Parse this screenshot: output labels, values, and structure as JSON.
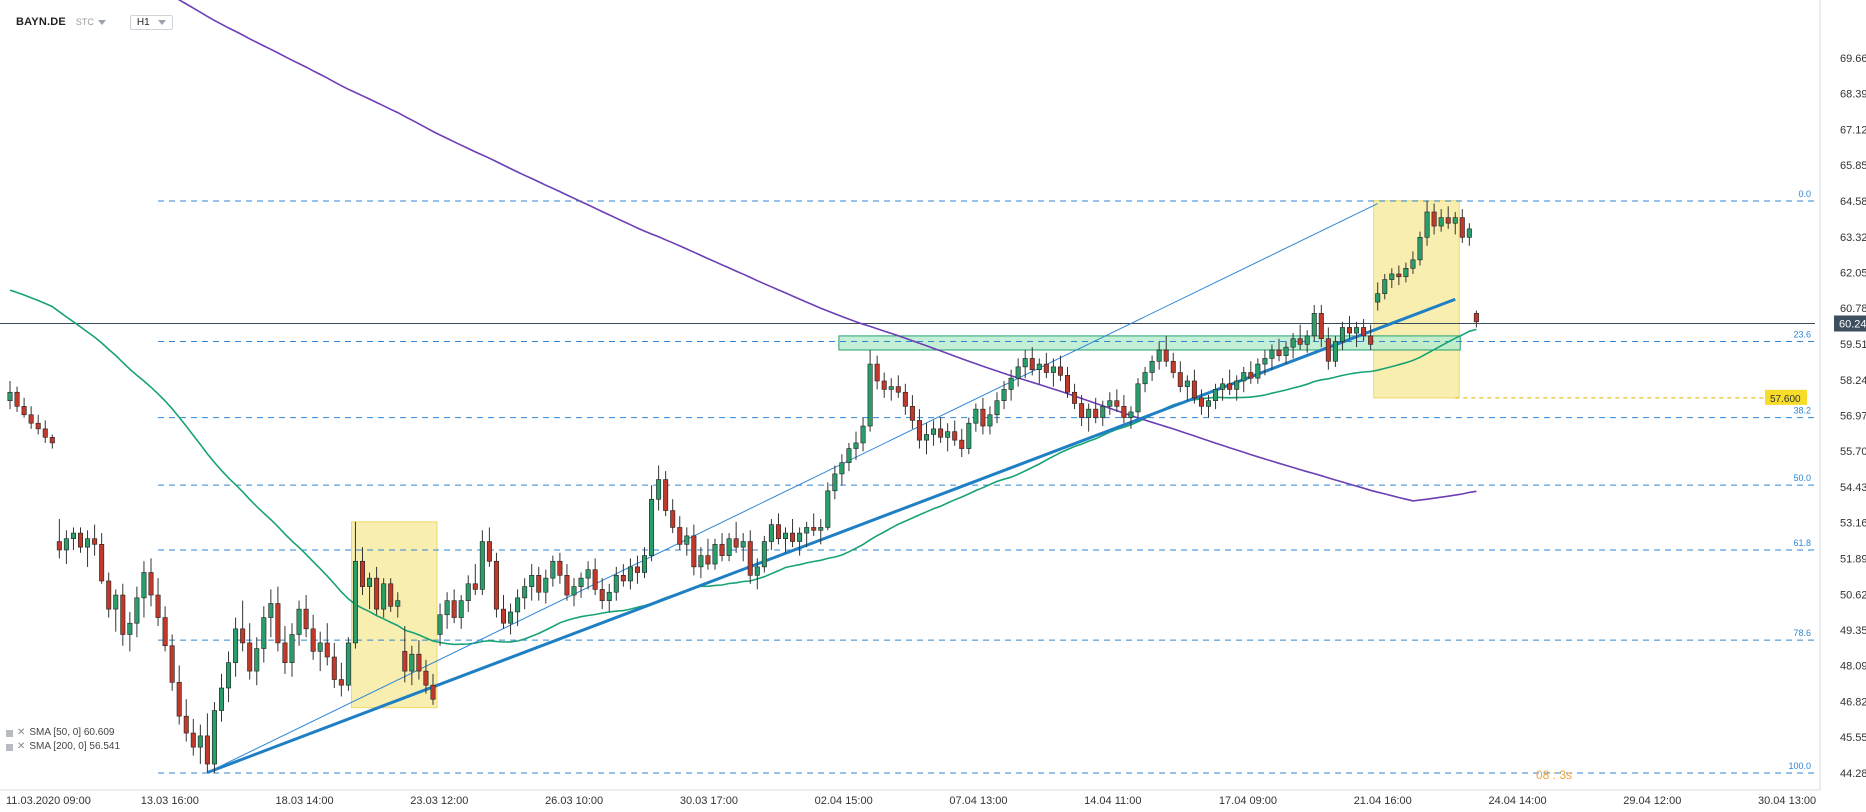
{
  "header": {
    "symbol": "BAYN.DE",
    "type_label": "STC",
    "timeframe": "H1"
  },
  "legend": {
    "sma50": "SMA [50, 0] 60.609",
    "sma200": "SMA [200, 0] 56.541"
  },
  "current_price": "60.240",
  "target_label": "57.600",
  "corner_text": "08 : 3s",
  "colors": {
    "bull": "#2a9d6b",
    "bear": "#c0392b",
    "sma50": "#18a374",
    "sma200": "#6b3fb5",
    "trend": "#1e7fc4",
    "fib": "#2e86d4",
    "zone": "#f8eeb0",
    "resistance": "#b9ecd0"
  },
  "chart_data": {
    "type": "candlestick",
    "instrument": "BAYN.DE",
    "timeframe": "H1",
    "y_ticks": [
      "69.666",
      "68.397",
      "67.128",
      "65.859",
      "64.589",
      "63.320",
      "62.051",
      "60.782",
      "59.513",
      "58.243",
      "56.974",
      "55.705",
      "54.436",
      "53.167",
      "51.898",
      "50.628",
      "49.359",
      "48.090",
      "46.821",
      "45.552",
      "44.282"
    ],
    "ylim": [
      44.282,
      69.666
    ],
    "x_ticks": [
      "11.03.2020 09:00",
      "13.03 16:00",
      "18.03 14:00",
      "23.03 12:00",
      "26.03 10:00",
      "30.03 17:00",
      "02.04 15:00",
      "07.04 13:00",
      "14.04 11:00",
      "17.04 09:00",
      "21.04 16:00",
      "24.04 14:00",
      "29.04 12:00",
      "30.04 13:00"
    ],
    "fib_levels": [
      {
        "label": "0.0",
        "price": 64.589
      },
      {
        "label": "23.6",
        "price": 59.6
      },
      {
        "label": "38.2",
        "price": 56.9
      },
      {
        "label": "50.0",
        "price": 54.5
      },
      {
        "label": "61.8",
        "price": 52.2
      },
      {
        "label": "78.6",
        "price": 49.0
      },
      {
        "label": "100.0",
        "price": 44.282
      }
    ],
    "current_price": 60.24,
    "target_price": 57.6,
    "series": [
      {
        "name": "SMA [50, 0]",
        "last": 60.609
      },
      {
        "name": "SMA [200, 0]",
        "last": 56.541
      }
    ],
    "candles": [
      [
        57.5,
        58.2,
        57.2,
        57.8
      ],
      [
        57.8,
        58.0,
        57.1,
        57.3
      ],
      [
        57.3,
        57.6,
        56.9,
        57.0
      ],
      [
        57.0,
        57.3,
        56.5,
        56.7
      ],
      [
        56.7,
        57.0,
        56.3,
        56.5
      ],
      [
        56.5,
        56.8,
        56.0,
        56.2
      ],
      [
        56.2,
        56.3,
        55.8,
        56.0
      ],
      [
        52.5,
        53.3,
        51.9,
        52.2
      ],
      [
        52.2,
        52.9,
        51.7,
        52.6
      ],
      [
        52.6,
        53.0,
        52.2,
        52.8
      ],
      [
        52.8,
        53.0,
        52.1,
        52.3
      ],
      [
        52.3,
        52.9,
        51.6,
        52.6
      ],
      [
        52.6,
        53.1,
        52.0,
        52.4
      ],
      [
        52.4,
        52.8,
        51.0,
        51.1
      ],
      [
        51.1,
        51.4,
        49.8,
        50.1
      ],
      [
        50.1,
        50.8,
        49.3,
        50.6
      ],
      [
        50.6,
        51.0,
        48.8,
        49.2
      ],
      [
        49.2,
        50.0,
        48.6,
        49.6
      ],
      [
        49.6,
        50.9,
        49.1,
        50.5
      ],
      [
        50.5,
        51.8,
        49.8,
        51.4
      ],
      [
        51.4,
        51.9,
        50.2,
        50.6
      ],
      [
        50.6,
        51.2,
        49.5,
        49.8
      ],
      [
        49.8,
        50.2,
        48.6,
        48.8
      ],
      [
        48.8,
        49.2,
        47.2,
        47.5
      ],
      [
        47.5,
        48.1,
        46.0,
        46.3
      ],
      [
        46.3,
        46.9,
        45.4,
        45.7
      ],
      [
        45.7,
        46.2,
        44.9,
        45.2
      ],
      [
        45.2,
        46.0,
        44.6,
        45.6
      ],
      [
        45.6,
        46.4,
        44.3,
        44.6
      ],
      [
        44.6,
        46.8,
        44.3,
        46.5
      ],
      [
        46.5,
        47.8,
        46.1,
        47.3
      ],
      [
        47.3,
        48.6,
        46.8,
        48.2
      ],
      [
        48.2,
        49.8,
        47.7,
        49.4
      ],
      [
        49.4,
        50.4,
        48.6,
        48.9
      ],
      [
        48.9,
        49.6,
        47.6,
        47.9
      ],
      [
        47.9,
        49.1,
        47.4,
        48.7
      ],
      [
        48.7,
        50.2,
        48.2,
        49.8
      ],
      [
        49.8,
        50.8,
        49.1,
        50.3
      ],
      [
        50.3,
        50.9,
        48.6,
        48.9
      ],
      [
        48.9,
        49.5,
        47.8,
        48.2
      ],
      [
        48.2,
        49.6,
        47.7,
        49.2
      ],
      [
        49.2,
        50.4,
        48.8,
        50.1
      ],
      [
        50.1,
        50.6,
        49.1,
        49.4
      ],
      [
        49.4,
        49.9,
        48.3,
        48.6
      ],
      [
        48.6,
        49.3,
        47.9,
        48.9
      ],
      [
        48.9,
        49.6,
        48.1,
        48.4
      ],
      [
        48.4,
        48.9,
        47.3,
        47.6
      ],
      [
        47.6,
        48.2,
        47.0,
        47.4
      ],
      [
        47.4,
        49.1,
        47.2,
        48.9
      ],
      [
        48.9,
        53.2,
        48.7,
        51.8
      ],
      [
        51.8,
        52.3,
        50.6,
        50.9
      ],
      [
        50.9,
        51.4,
        50.1,
        51.2
      ],
      [
        51.2,
        51.6,
        49.9,
        50.1
      ],
      [
        50.1,
        51.2,
        49.8,
        51.0
      ],
      [
        51.0,
        51.2,
        50.0,
        50.2
      ],
      [
        50.2,
        50.7,
        49.8,
        50.4
      ],
      [
        48.6,
        49.5,
        47.5,
        47.9
      ],
      [
        47.9,
        48.8,
        47.4,
        48.5
      ],
      [
        48.5,
        49.0,
        47.6,
        47.9
      ],
      [
        47.9,
        48.3,
        47.1,
        47.4
      ],
      [
        47.4,
        47.8,
        46.7,
        46.9
      ],
      [
        49.2,
        50.3,
        48.8,
        49.9
      ],
      [
        49.9,
        50.7,
        49.4,
        50.4
      ],
      [
        50.4,
        50.8,
        49.6,
        49.8
      ],
      [
        49.8,
        50.6,
        49.4,
        50.4
      ],
      [
        50.4,
        51.3,
        50.0,
        51.0
      ],
      [
        51.0,
        51.7,
        50.6,
        50.8
      ],
      [
        50.8,
        52.9,
        50.6,
        52.5
      ],
      [
        52.5,
        53.0,
        51.6,
        51.8
      ],
      [
        51.8,
        52.1,
        49.8,
        50.1
      ],
      [
        50.1,
        50.6,
        49.4,
        49.6
      ],
      [
        49.6,
        50.3,
        49.2,
        50.0
      ],
      [
        50.0,
        50.8,
        49.5,
        50.5
      ],
      [
        50.5,
        51.2,
        50.1,
        50.9
      ],
      [
        50.9,
        51.7,
        50.4,
        51.3
      ],
      [
        51.3,
        51.6,
        50.4,
        50.7
      ],
      [
        50.7,
        51.5,
        50.3,
        51.2
      ],
      [
        51.2,
        52.0,
        50.9,
        51.8
      ],
      [
        51.8,
        52.1,
        51.0,
        51.3
      ],
      [
        51.3,
        51.7,
        50.4,
        50.6
      ],
      [
        50.6,
        51.2,
        50.2,
        50.9
      ],
      [
        50.9,
        51.4,
        50.5,
        51.2
      ],
      [
        51.2,
        51.8,
        50.8,
        51.5
      ],
      [
        51.5,
        51.9,
        50.6,
        50.8
      ],
      [
        50.8,
        51.2,
        50.1,
        50.4
      ],
      [
        50.4,
        51.0,
        50.0,
        50.7
      ],
      [
        50.7,
        51.6,
        50.4,
        51.3
      ],
      [
        51.3,
        51.7,
        50.9,
        51.1
      ],
      [
        51.1,
        51.9,
        50.8,
        51.6
      ],
      [
        51.6,
        52.0,
        51.0,
        51.4
      ],
      [
        51.4,
        52.3,
        51.2,
        52.0
      ],
      [
        52.0,
        54.5,
        51.8,
        54.0
      ],
      [
        54.0,
        55.2,
        53.6,
        54.7
      ],
      [
        54.7,
        55.0,
        53.4,
        53.6
      ],
      [
        53.6,
        54.0,
        52.8,
        53.0
      ],
      [
        53.0,
        53.4,
        52.2,
        52.4
      ],
      [
        52.4,
        53.0,
        52.0,
        52.7
      ],
      [
        52.7,
        53.1,
        51.3,
        51.6
      ],
      [
        51.6,
        52.3,
        51.2,
        52.0
      ],
      [
        52.0,
        52.6,
        51.5,
        51.7
      ],
      [
        51.7,
        52.6,
        51.5,
        52.4
      ],
      [
        52.4,
        52.8,
        51.8,
        52.0
      ],
      [
        52.0,
        52.8,
        51.8,
        52.6
      ],
      [
        52.6,
        53.2,
        52.1,
        52.3
      ],
      [
        52.3,
        52.8,
        51.8,
        52.5
      ],
      [
        52.5,
        52.9,
        51.0,
        51.3
      ],
      [
        51.3,
        51.9,
        50.8,
        51.6
      ],
      [
        51.6,
        52.7,
        51.4,
        52.5
      ],
      [
        52.5,
        53.3,
        52.2,
        53.1
      ],
      [
        53.1,
        53.5,
        52.4,
        52.6
      ],
      [
        52.6,
        53.0,
        52.1,
        52.8
      ],
      [
        52.8,
        53.3,
        52.3,
        52.5
      ],
      [
        52.5,
        53.0,
        52.0,
        52.8
      ],
      [
        52.8,
        53.2,
        52.3,
        53.0
      ],
      [
        53.0,
        53.5,
        52.7,
        52.9
      ],
      [
        52.9,
        53.3,
        52.4,
        53.0
      ],
      [
        53.0,
        54.6,
        52.9,
        54.3
      ],
      [
        54.3,
        55.2,
        54.0,
        54.9
      ],
      [
        54.9,
        55.6,
        54.5,
        55.3
      ],
      [
        55.3,
        56.0,
        55.0,
        55.8
      ],
      [
        55.8,
        56.4,
        55.4,
        56.0
      ],
      [
        56.0,
        56.9,
        55.7,
        56.6
      ],
      [
        56.6,
        59.3,
        56.4,
        58.8
      ],
      [
        58.8,
        59.1,
        57.9,
        58.2
      ],
      [
        58.2,
        58.5,
        57.6,
        57.9
      ],
      [
        57.9,
        58.3,
        57.5,
        58.0
      ],
      [
        58.0,
        58.4,
        57.6,
        57.8
      ],
      [
        57.8,
        58.1,
        57.0,
        57.3
      ],
      [
        57.3,
        57.7,
        56.5,
        56.8
      ],
      [
        56.8,
        57.2,
        55.8,
        56.1
      ],
      [
        56.1,
        56.7,
        55.6,
        56.3
      ],
      [
        56.3,
        56.8,
        55.9,
        56.5
      ],
      [
        56.5,
        56.9,
        56.0,
        56.2
      ],
      [
        56.2,
        56.7,
        55.7,
        56.4
      ],
      [
        56.4,
        56.8,
        55.9,
        56.1
      ],
      [
        56.1,
        56.5,
        55.5,
        55.8
      ],
      [
        55.8,
        56.9,
        55.6,
        56.7
      ],
      [
        56.7,
        57.4,
        56.4,
        57.2
      ],
      [
        57.2,
        57.6,
        56.3,
        56.6
      ],
      [
        56.6,
        57.3,
        56.3,
        57.0
      ],
      [
        57.0,
        57.8,
        56.7,
        57.5
      ],
      [
        57.5,
        58.2,
        57.2,
        57.9
      ],
      [
        57.9,
        58.6,
        57.5,
        58.3
      ],
      [
        58.3,
        59.0,
        58.0,
        58.7
      ],
      [
        58.7,
        59.3,
        58.3,
        59.0
      ],
      [
        59.0,
        59.4,
        58.4,
        58.6
      ],
      [
        58.6,
        59.0,
        58.1,
        58.8
      ],
      [
        58.8,
        59.2,
        58.3,
        58.5
      ],
      [
        58.5,
        59.0,
        58.0,
        58.7
      ],
      [
        58.7,
        59.1,
        58.2,
        58.4
      ],
      [
        58.4,
        58.7,
        57.6,
        57.8
      ],
      [
        57.8,
        58.1,
        57.2,
        57.4
      ],
      [
        57.4,
        57.7,
        56.6,
        56.9
      ],
      [
        56.9,
        57.4,
        56.4,
        57.2
      ],
      [
        57.2,
        57.6,
        56.7,
        56.9
      ],
      [
        56.9,
        57.5,
        56.6,
        57.3
      ],
      [
        57.3,
        57.8,
        57.0,
        57.5
      ],
      [
        57.5,
        57.9,
        57.1,
        57.3
      ],
      [
        57.3,
        57.7,
        56.7,
        56.9
      ],
      [
        56.9,
        57.3,
        56.5,
        57.1
      ],
      [
        57.1,
        58.3,
        56.9,
        58.1
      ],
      [
        58.1,
        58.7,
        57.8,
        58.5
      ],
      [
        58.5,
        59.1,
        58.2,
        58.9
      ],
      [
        58.9,
        59.6,
        58.6,
        59.3
      ],
      [
        59.3,
        59.8,
        58.7,
        58.9
      ],
      [
        58.9,
        59.2,
        58.3,
        58.5
      ],
      [
        58.5,
        58.9,
        57.8,
        58.0
      ],
      [
        58.0,
        58.4,
        57.5,
        58.2
      ],
      [
        58.2,
        58.6,
        57.4,
        57.6
      ],
      [
        57.6,
        57.9,
        57.0,
        57.3
      ],
      [
        57.3,
        57.7,
        56.9,
        57.5
      ],
      [
        57.5,
        58.1,
        57.2,
        57.9
      ],
      [
        57.9,
        58.3,
        57.5,
        58.1
      ],
      [
        58.1,
        58.6,
        57.7,
        57.9
      ],
      [
        57.9,
        58.4,
        57.5,
        58.2
      ],
      [
        58.2,
        58.7,
        57.8,
        58.5
      ],
      [
        58.5,
        58.9,
        58.1,
        58.3
      ],
      [
        58.3,
        59.0,
        58.1,
        58.8
      ],
      [
        58.8,
        59.3,
        58.4,
        59.0
      ],
      [
        59.0,
        59.5,
        58.6,
        59.3
      ],
      [
        59.3,
        59.7,
        58.9,
        59.1
      ],
      [
        59.1,
        59.6,
        58.8,
        59.4
      ],
      [
        59.4,
        59.9,
        59.0,
        59.7
      ],
      [
        59.7,
        60.2,
        59.3,
        59.5
      ],
      [
        59.5,
        60.0,
        59.2,
        59.8
      ],
      [
        59.8,
        60.9,
        59.6,
        60.6
      ],
      [
        60.6,
        60.9,
        59.4,
        59.7
      ],
      [
        59.7,
        60.1,
        58.6,
        58.9
      ],
      [
        58.9,
        59.8,
        58.7,
        59.6
      ],
      [
        59.6,
        60.3,
        59.3,
        60.1
      ],
      [
        60.1,
        60.5,
        59.7,
        59.9
      ],
      [
        59.9,
        60.3,
        59.4,
        60.1
      ],
      [
        60.1,
        60.4,
        59.6,
        59.8
      ],
      [
        59.8,
        60.2,
        59.3,
        59.5
      ],
      [
        61.0,
        61.7,
        60.7,
        61.3
      ],
      [
        61.3,
        62.0,
        61.1,
        61.8
      ],
      [
        61.8,
        62.2,
        61.5,
        62.0
      ],
      [
        62.0,
        62.3,
        61.6,
        61.9
      ],
      [
        61.9,
        62.4,
        61.7,
        62.2
      ],
      [
        62.2,
        62.8,
        62.0,
        62.5
      ],
      [
        62.5,
        63.5,
        62.3,
        63.3
      ],
      [
        63.3,
        64.6,
        63.0,
        64.2
      ],
      [
        64.2,
        64.5,
        63.4,
        63.7
      ],
      [
        63.7,
        64.3,
        63.5,
        64.0
      ],
      [
        64.0,
        64.4,
        63.6,
        63.8
      ],
      [
        63.8,
        64.2,
        63.4,
        64.0
      ],
      [
        64.0,
        64.3,
        63.1,
        63.3
      ],
      [
        63.3,
        63.8,
        63.0,
        63.6
      ],
      [
        60.6,
        60.7,
        60.1,
        60.3
      ]
    ],
    "annotations": [
      "Rising trendline",
      "Fibonacci retracement",
      "Resistance zone 59.3-59.8",
      "Highlighted zones",
      "Target 57.600"
    ]
  }
}
